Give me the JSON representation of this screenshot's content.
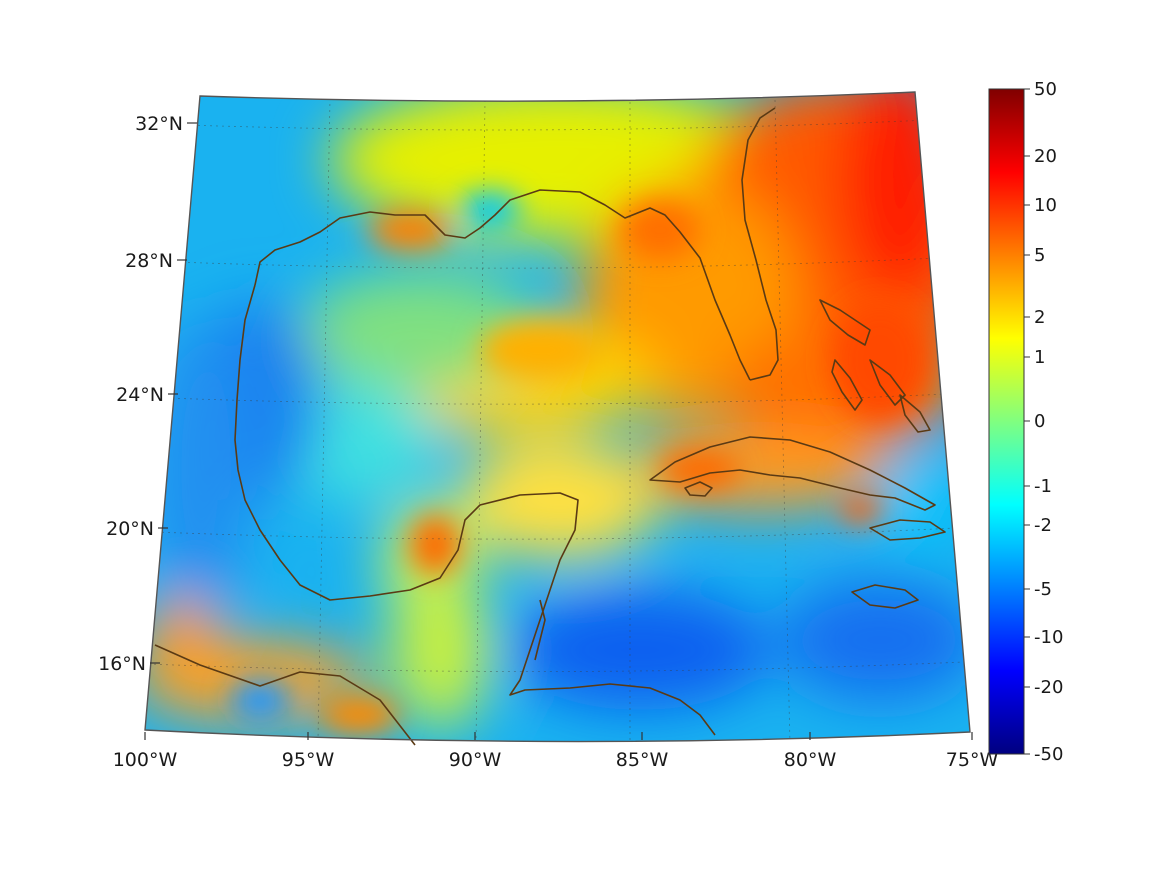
{
  "map": {
    "projection": "conic",
    "region": "Gulf of Mexico and Caribbean",
    "lon_range": [
      -100,
      -75
    ],
    "lat_range": [
      14,
      32
    ],
    "lon_ticks": [
      {
        "value": -100,
        "label": "100°W"
      },
      {
        "value": -95,
        "label": "95°W"
      },
      {
        "value": -90,
        "label": "90°W"
      },
      {
        "value": -85,
        "label": "85°W"
      },
      {
        "value": -80,
        "label": "80°W"
      },
      {
        "value": -75,
        "label": "75°W"
      }
    ],
    "lat_ticks": [
      {
        "value": 16,
        "label": "16°N"
      },
      {
        "value": 20,
        "label": "20°N"
      },
      {
        "value": 24,
        "label": "24°N"
      },
      {
        "value": 28,
        "label": "28°N"
      },
      {
        "value": 32,
        "label": "32°N"
      }
    ],
    "grid": true,
    "coastline_color": "#5a3a14",
    "field_colormap": "jet"
  },
  "colorbar": {
    "placement": "right",
    "scale": "symmetric-log",
    "range": [
      -50,
      50
    ],
    "ticks": [
      "50",
      "20",
      "10",
      "5",
      "2",
      "1",
      "0",
      "-1",
      "-2",
      "-5",
      "-10",
      "-20",
      "-50"
    ],
    "colormap": [
      "#800000",
      "#ff0000",
      "#ff8000",
      "#ffff00",
      "#80ff80",
      "#00ffff",
      "#0080ff",
      "#0000ff",
      "#000080"
    ]
  }
}
